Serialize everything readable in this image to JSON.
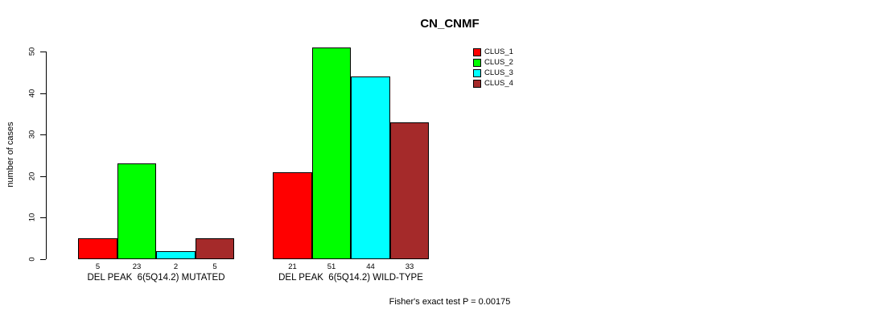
{
  "chart_data": {
    "type": "bar",
    "title": "CN_CNMF",
    "ylabel": "number of cases",
    "ylim": [
      0,
      50
    ],
    "yticks": [
      0,
      10,
      20,
      30,
      40,
      50
    ],
    "grid": false,
    "legend_position": "top-right",
    "categories": [
      "DEL PEAK  6(5Q14.2) MUTATED",
      "DEL PEAK  6(5Q14.2) WILD-TYPE"
    ],
    "series": [
      {
        "name": "CLUS_1",
        "color": "#FF0000",
        "values": [
          5,
          21
        ]
      },
      {
        "name": "CLUS_2",
        "color": "#00FF00",
        "values": [
          23,
          51
        ]
      },
      {
        "name": "CLUS_3",
        "color": "#00FFFF",
        "values": [
          2,
          44
        ]
      },
      {
        "name": "CLUS_4",
        "color": "#A52A2A",
        "values": [
          5,
          33
        ]
      }
    ],
    "annotation": "Fisher's exact test P = 0.00175"
  },
  "colors": {
    "background": "#FFFFFF",
    "axis": "#000000",
    "text": "#000000"
  }
}
